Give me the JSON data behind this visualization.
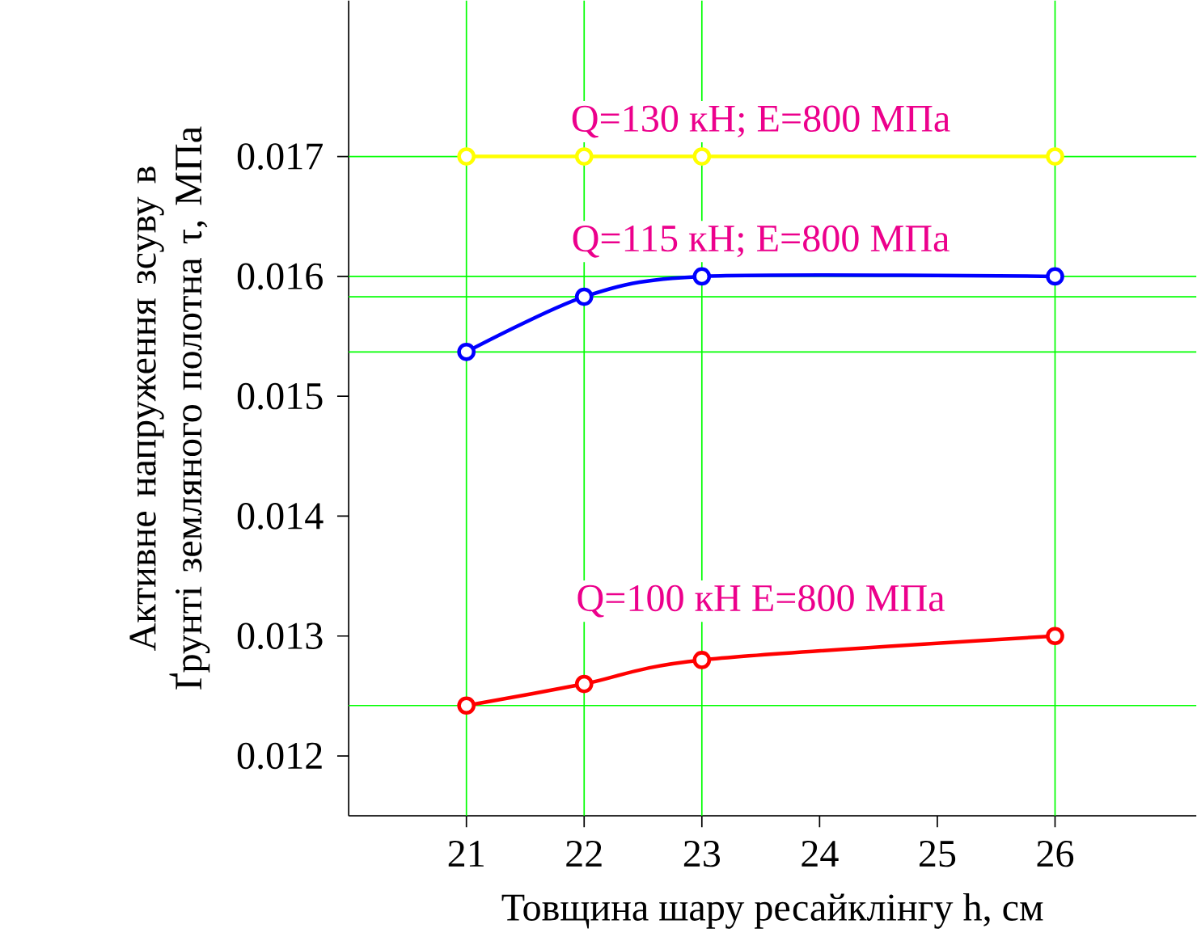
{
  "chart_data": {
    "type": "line",
    "xlabel": "Товщина шару ресайклінгу h, см",
    "ylabel": "Активне напруження зсуву в Ґрунті земляного полотна τ, МПа",
    "x": [
      21,
      22,
      23,
      26
    ],
    "series": [
      {
        "name": "Q=130 кН; E=800 МПа",
        "color": "#ffff00",
        "values": [
          0.017,
          0.017,
          0.017,
          0.017
        ]
      },
      {
        "name": "Q=115 кН; E=800 МПа",
        "color": "#0000ff",
        "values": [
          0.01537,
          0.01583,
          0.016,
          0.016
        ]
      },
      {
        "name": "Q=100 кН E=800 МПа",
        "color": "#ff0000",
        "values": [
          0.01242,
          0.0126,
          0.0128,
          0.013
        ]
      }
    ],
    "xlim": [
      20,
      27.2
    ],
    "ylim": [
      0.0115,
      0.0183
    ],
    "xticks": [
      21,
      22,
      23,
      24,
      25,
      26
    ],
    "yticks": [
      0.012,
      0.013,
      0.014,
      0.015,
      0.016,
      0.017
    ],
    "ref_lines": [
      {
        "axis": "x",
        "value": 21,
        "color": "#00ff00"
      },
      {
        "axis": "x",
        "value": 22,
        "color": "#00ff00"
      },
      {
        "axis": "x",
        "value": 23,
        "color": "#00ff00"
      },
      {
        "axis": "x",
        "value": 26,
        "color": "#00ff00"
      },
      {
        "axis": "y",
        "value": 0.017,
        "color": "#00ff00"
      },
      {
        "axis": "y",
        "value": 0.016,
        "color": "#00ff00"
      },
      {
        "axis": "y",
        "value": 0.01583,
        "color": "#00ff00"
      },
      {
        "axis": "y",
        "value": 0.01537,
        "color": "#00ff00"
      },
      {
        "axis": "y",
        "value": 0.01242,
        "color": "#00ff00"
      }
    ],
    "marker": "circle",
    "line_style": "solid",
    "grid": false,
    "legend": false
  }
}
